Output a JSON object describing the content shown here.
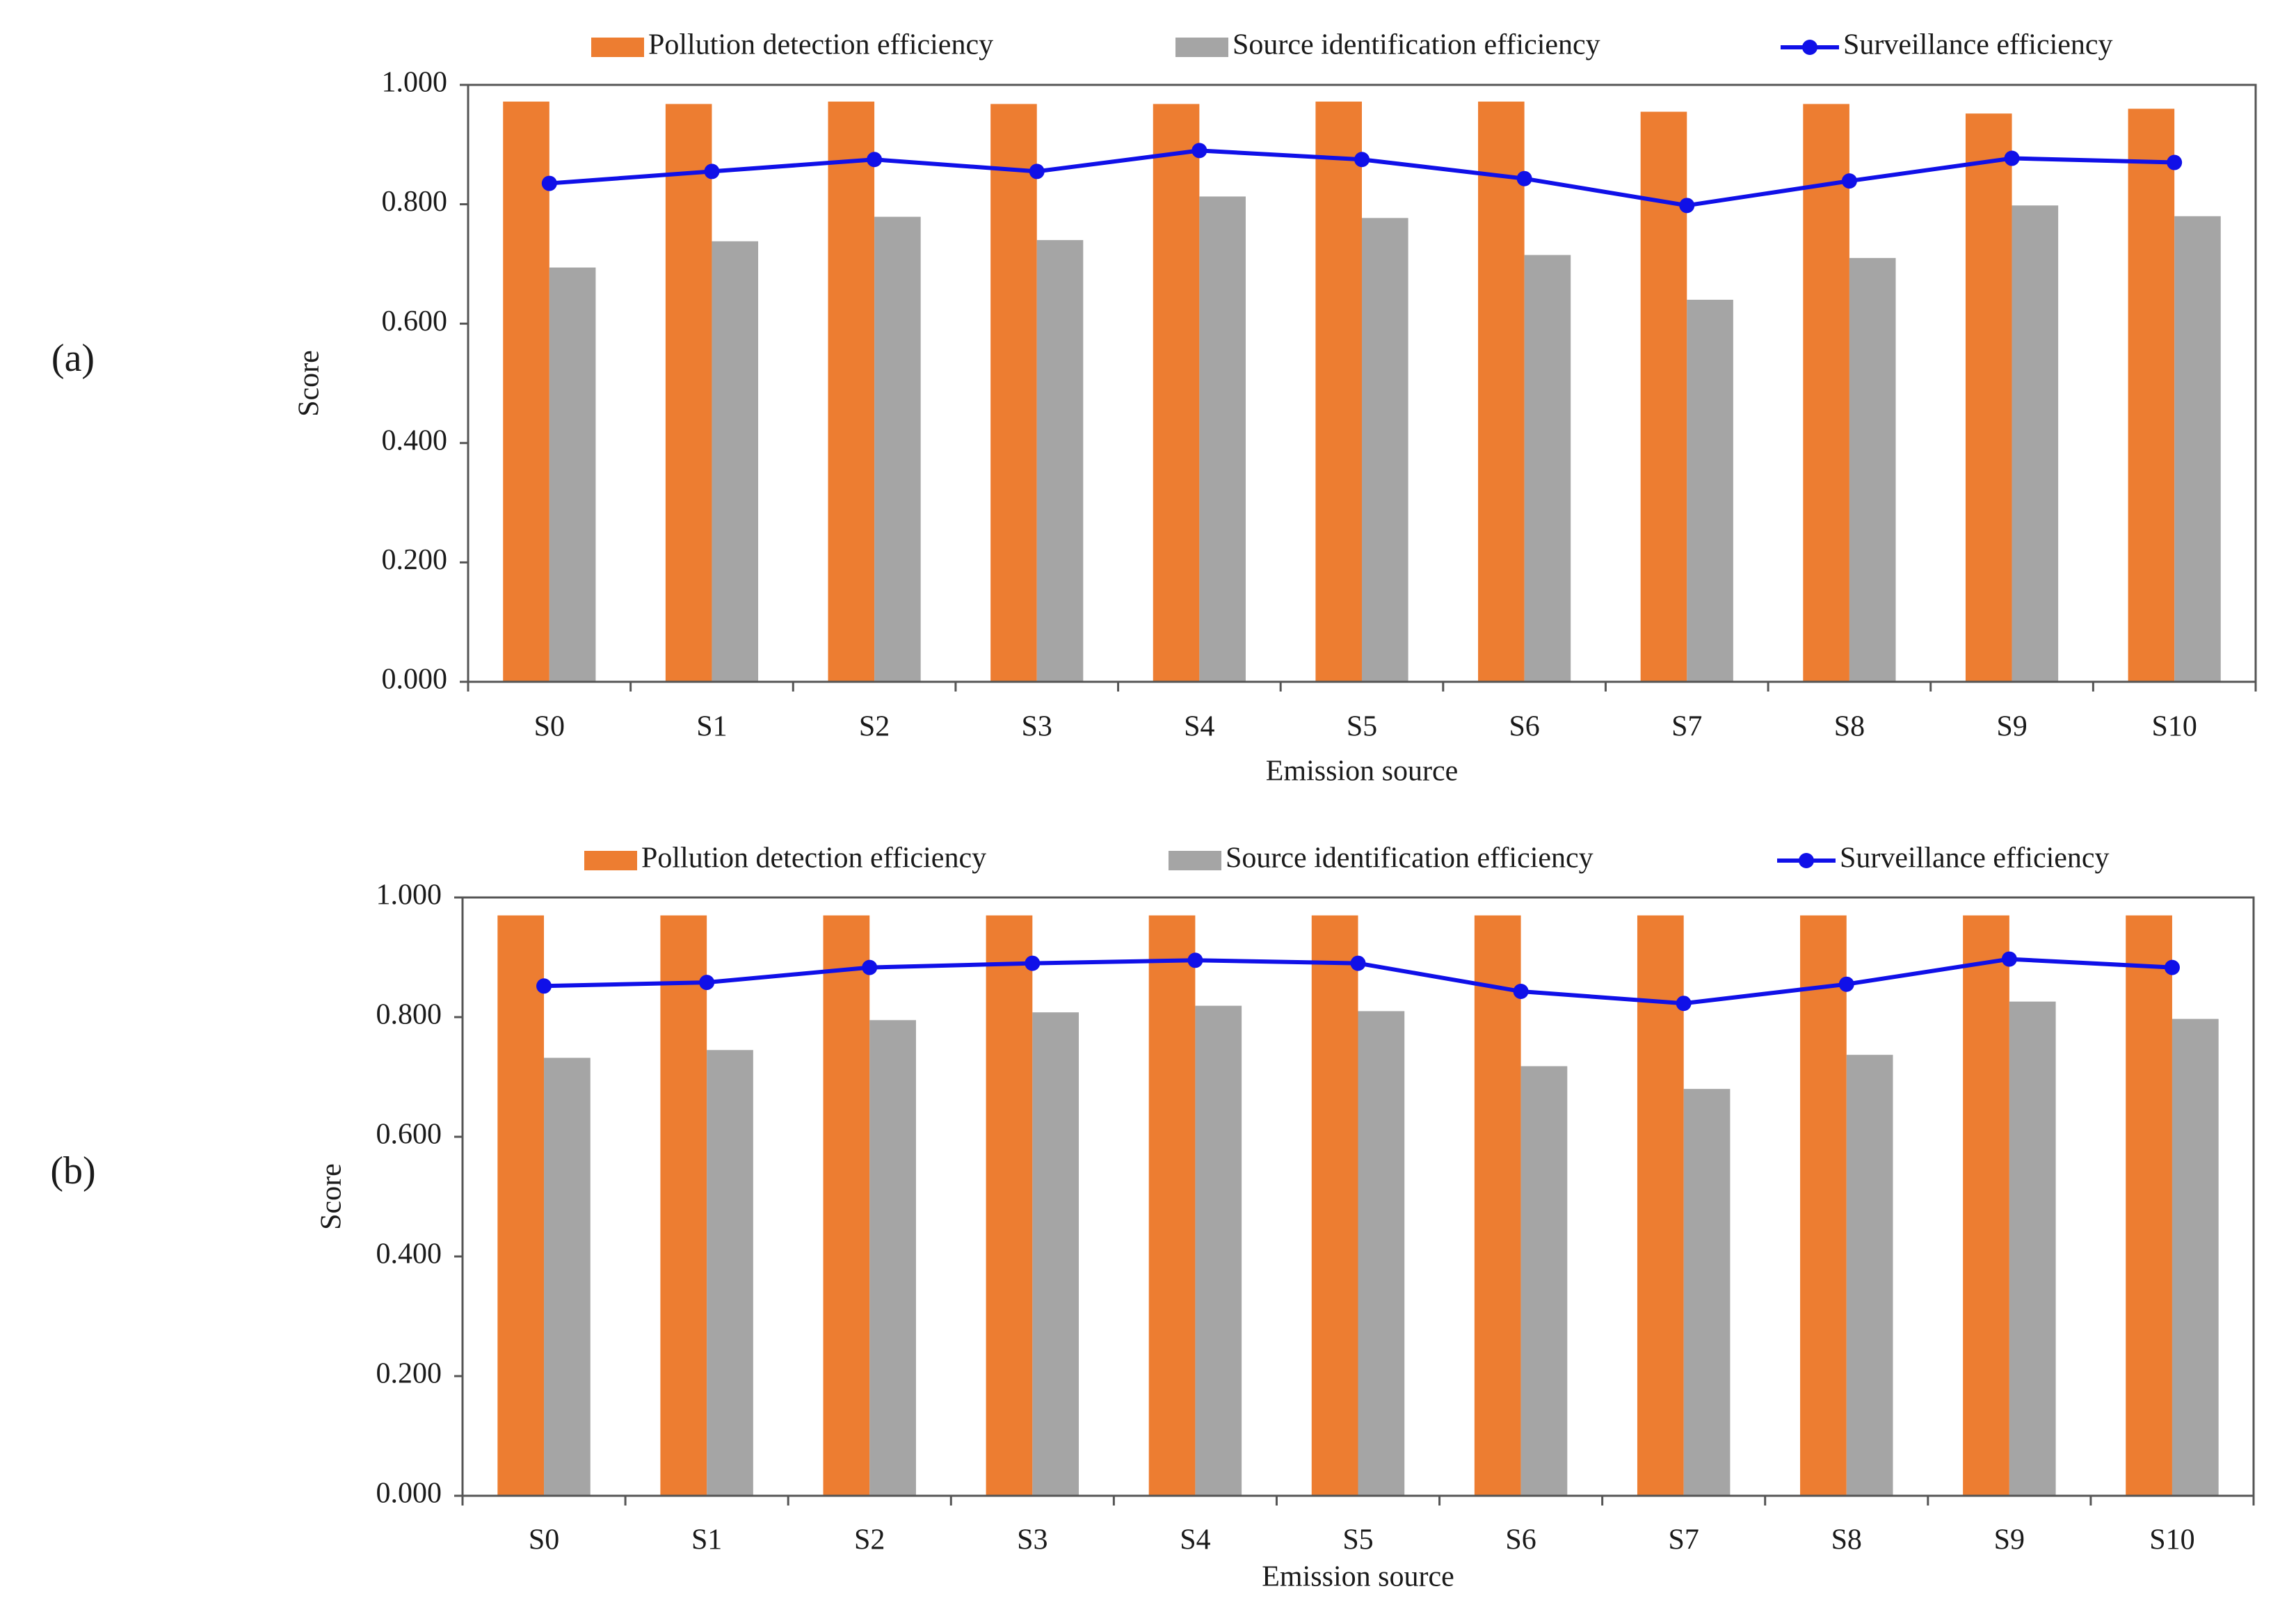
{
  "colors": {
    "pollution": "#ED7D31",
    "source": "#A5A5A5",
    "surveillance": "#1010E8",
    "axis": "#555555"
  },
  "chart_data": [
    {
      "panel_label": "(a)",
      "type": "bar+line",
      "xlabel": "Emission source",
      "ylabel": "Score",
      "ylim": [
        0,
        1
      ],
      "yticks": [
        "0.000",
        "0.200",
        "0.400",
        "0.600",
        "0.800",
        "1.000"
      ],
      "legend_position": "top",
      "categories": [
        "S0",
        "S1",
        "S2",
        "S3",
        "S4",
        "S5",
        "S6",
        "S7",
        "S8",
        "S9",
        "S10"
      ],
      "series": [
        {
          "name": "Pollution detection efficiency",
          "type": "bar",
          "values": [
            0.972,
            0.968,
            0.972,
            0.968,
            0.968,
            0.972,
            0.972,
            0.955,
            0.968,
            0.952,
            0.96
          ]
        },
        {
          "name": "Source identification efficiency",
          "type": "bar",
          "values": [
            0.694,
            0.738,
            0.779,
            0.74,
            0.813,
            0.777,
            0.715,
            0.64,
            0.71,
            0.798,
            0.78
          ]
        },
        {
          "name": "Surveillance efficiency",
          "type": "line",
          "values": [
            0.835,
            0.855,
            0.875,
            0.855,
            0.89,
            0.875,
            0.843,
            0.798,
            0.839,
            0.877,
            0.87
          ]
        }
      ]
    },
    {
      "panel_label": "(b)",
      "type": "bar+line",
      "xlabel": "Emission source",
      "ylabel": "Score",
      "ylim": [
        0,
        1
      ],
      "yticks": [
        "0.000",
        "0.200",
        "0.400",
        "0.600",
        "0.800",
        "1.000"
      ],
      "legend_position": "top",
      "categories": [
        "S0",
        "S1",
        "S2",
        "S3",
        "S4",
        "S5",
        "S6",
        "S7",
        "S8",
        "S9",
        "S10"
      ],
      "series": [
        {
          "name": "Pollution detection efficiency",
          "type": "bar",
          "values": [
            0.97,
            0.97,
            0.97,
            0.97,
            0.97,
            0.97,
            0.97,
            0.97,
            0.97,
            0.97,
            0.97
          ]
        },
        {
          "name": "Source identification efficiency",
          "type": "bar",
          "values": [
            0.732,
            0.745,
            0.795,
            0.808,
            0.819,
            0.81,
            0.718,
            0.68,
            0.737,
            0.826,
            0.797
          ]
        },
        {
          "name": "Surveillance efficiency",
          "type": "line",
          "values": [
            0.852,
            0.858,
            0.883,
            0.89,
            0.895,
            0.89,
            0.843,
            0.823,
            0.855,
            0.897,
            0.883
          ]
        }
      ]
    }
  ]
}
